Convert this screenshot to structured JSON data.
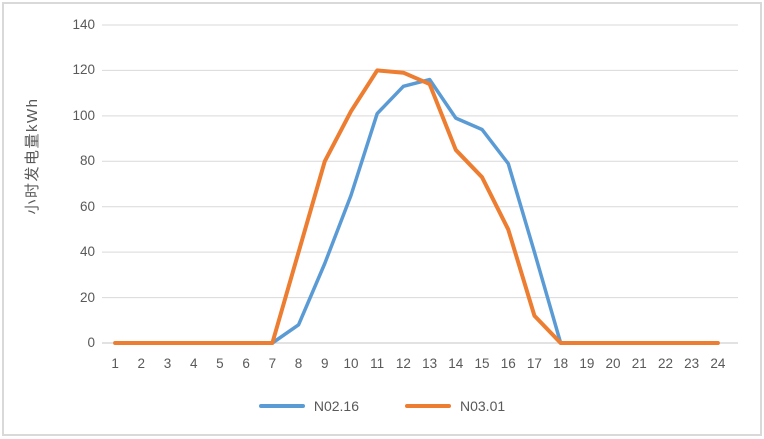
{
  "chart": {
    "frame_border_color": "#d9d9d9",
    "background_color": "#ffffff"
  },
  "chart_data": {
    "type": "line",
    "title": "",
    "xlabel": "",
    "ylabel": "小时发电量kWh",
    "x": [
      1,
      2,
      3,
      4,
      5,
      6,
      7,
      8,
      9,
      10,
      11,
      12,
      13,
      14,
      15,
      16,
      17,
      18,
      19,
      20,
      21,
      22,
      23,
      24
    ],
    "series": [
      {
        "name": "N02.16",
        "color": "#5b9bd5",
        "values": [
          0,
          0,
          0,
          0,
          0,
          0,
          0,
          8,
          35,
          65,
          101,
          113,
          116,
          99,
          94,
          79,
          40,
          0,
          0,
          0,
          0,
          0,
          0,
          0
        ]
      },
      {
        "name": "N03.01",
        "color": "#ed7d31",
        "values": [
          0,
          0,
          0,
          0,
          0,
          0,
          0,
          40,
          80,
          102,
          120,
          119,
          114,
          85,
          73,
          50,
          12,
          0,
          0,
          0,
          0,
          0,
          0,
          0
        ]
      }
    ],
    "ylim": [
      0,
      140
    ],
    "y_ticks": [
      0,
      20,
      40,
      60,
      80,
      100,
      120,
      140
    ],
    "grid": "horizontal",
    "gridline_color": "#d9d9d9",
    "text_color": "#595959",
    "legend_position": "bottom-center"
  }
}
